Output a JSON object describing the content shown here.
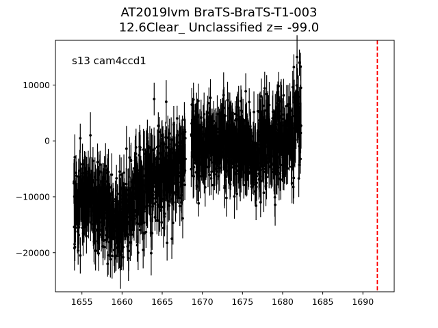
{
  "chart_data": {
    "type": "scatter",
    "title_line1": "AT2019lvm  BraTS-BraTS-T1-003",
    "title_line2": "12.6Clear_ Unclassified z= -99.0",
    "annotation": "s13 cam4ccd1",
    "xlabel": "",
    "ylabel": "",
    "xlim": [
      1651.7,
      1693.9
    ],
    "ylim": [
      -27000,
      18000
    ],
    "xticks": [
      1655,
      1660,
      1665,
      1670,
      1675,
      1680,
      1685,
      1690
    ],
    "yticks": [
      -20000,
      -10000,
      0,
      10000
    ],
    "ytick_labels": [
      "−20000",
      "−10000",
      "0",
      "10000"
    ],
    "vline": {
      "x": 1691.8,
      "color": "#ff0000",
      "style": "dashed"
    },
    "marker_color": "#000000",
    "error_bar": 3200,
    "trend": [
      [
        1654.0,
        -10000
      ],
      [
        1656.0,
        -10500
      ],
      [
        1657.5,
        -12000
      ],
      [
        1659.0,
        -14000
      ],
      [
        1660.0,
        -13000
      ],
      [
        1661.5,
        -10000
      ],
      [
        1663.0,
        -8000
      ],
      [
        1664.5,
        -6000
      ],
      [
        1666.0,
        -5000
      ],
      [
        1667.9,
        -4000
      ],
      [
        1668.5,
        0
      ],
      [
        1670.5,
        -1500
      ],
      [
        1672.5,
        500
      ],
      [
        1674.5,
        -1500
      ],
      [
        1676.5,
        -3500
      ],
      [
        1678.0,
        0
      ],
      [
        1680.0,
        0
      ],
      [
        1682.3,
        2500
      ]
    ],
    "gaps": [
      [
        1667.9,
        1668.6
      ]
    ],
    "x_range": [
      1654.0,
      1682.3
    ],
    "n_points": 1500,
    "scatter_amplitude": 3800,
    "outliers": [
      [
        1654.8,
        -20500
      ],
      [
        1658.2,
        -22000
      ],
      [
        1659.8,
        -22500
      ],
      [
        1660.8,
        -21000
      ],
      [
        1665.5,
        7000
      ],
      [
        1666.2,
        -17500
      ],
      [
        1664.0,
        7500
      ],
      [
        1676.0,
        -5500
      ],
      [
        1681.4,
        13200
      ],
      [
        1682.1,
        14000
      ],
      [
        1681.8,
        15000
      ],
      [
        1679.5,
        9800
      ],
      [
        1673.0,
        -10200
      ],
      [
        1662.0,
        -20000
      ],
      [
        1656.5,
        -18000
      ]
    ]
  }
}
